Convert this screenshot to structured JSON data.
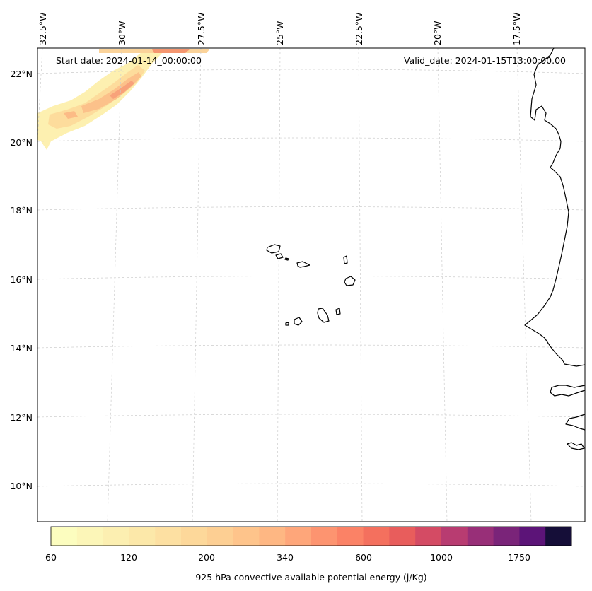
{
  "header": {
    "start_label": "Start date: 2024-01-14_00:00:00",
    "valid_label": "Valid_date: 2024-01-15T13:00:00.00"
  },
  "longitude_labels": [
    "32.5°W",
    "30°W",
    "27.5°W",
    "25°W",
    "22.5°W",
    "20°W",
    "17.5°W"
  ],
  "latitude_labels": [
    "22°N",
    "20°N",
    "18°N",
    "16°N",
    "14°N",
    "12°N",
    "10°N"
  ],
  "colorbar": {
    "title": "925 hPa convective available potential energy (j/Kg)",
    "tick_labels": [
      "60",
      "120",
      "200",
      "340",
      "600",
      "1000",
      "1750"
    ],
    "colors": [
      "#fcfdbf",
      "#fcf6b8",
      "#fcefb1",
      "#fce8a9",
      "#fde0a2",
      "#fdd89a",
      "#fdcf93",
      "#fec48b",
      "#feb783",
      "#fea67a",
      "#fd9470",
      "#fb8266",
      "#f4705e",
      "#e85d5c",
      "#d44b64",
      "#b83c71",
      "#982f78",
      "#7a2479",
      "#5c1478",
      "#150e38"
    ]
  },
  "colors": {
    "coastline": "#000000",
    "gridline": "#cccccc"
  }
}
